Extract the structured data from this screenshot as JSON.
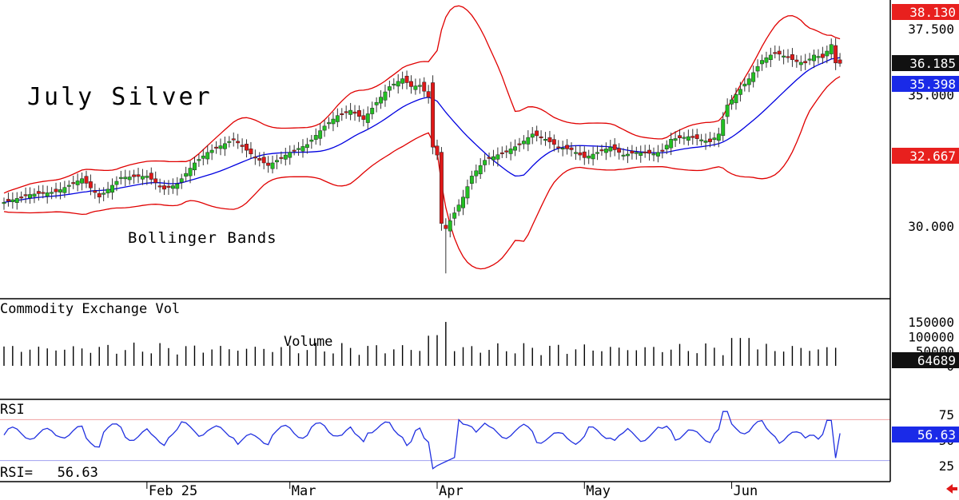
{
  "chart_data": [
    {
      "type": "candlestick",
      "title": "July Silver",
      "annotation": "Bollinger Bands",
      "y_ticks": [
        30.0,
        35.0,
        37.5
      ],
      "y_tick_labels": [
        "30.000",
        "35.000",
        "37.500"
      ],
      "ylim": [
        27.2,
        38.7
      ],
      "x_tick_labels": [
        "Feb 25",
        "Mar",
        "Apr",
        "May",
        "Jun"
      ],
      "x_tick_index": [
        33,
        66,
        100,
        134,
        168
      ],
      "markers": [
        {
          "label": "38.130",
          "value": 38.13,
          "color": "#e8201e"
        },
        {
          "label": "36.185",
          "value": 36.185,
          "color": "#111111"
        },
        {
          "label": "35.398",
          "value": 35.398,
          "color": "#1a2ae8"
        },
        {
          "label": "32.667",
          "value": 32.667,
          "color": "#e8201e"
        }
      ],
      "series": [
        {
          "name": "",
          "kind": "ohlc",
          "values": []
        },
        {
          "name": "",
          "kind": "line",
          "color": "#0000e0",
          "values": []
        },
        {
          "name": "",
          "kind": "line",
          "color": "#e00000",
          "values": []
        },
        {
          "name": "",
          "kind": "line",
          "color": "#e00000",
          "values": []
        }
      ],
      "grid": false
    },
    {
      "type": "bar",
      "title": "Commodity Exchange Vol",
      "annotation": "Volume",
      "y_ticks": [
        0,
        50000,
        100000,
        150000
      ],
      "y_tick_labels": [
        "0",
        "50000",
        "100000",
        "150000"
      ],
      "ylim": [
        0,
        185000
      ],
      "markers": [
        {
          "label": "64689",
          "value": 64689,
          "color": "#111111"
        }
      ],
      "values": []
    },
    {
      "type": "line",
      "title": "RSI",
      "readout": "RSI=   56.63",
      "y_ticks": [
        25,
        50,
        75
      ],
      "y_tick_labels": [
        "25",
        "50",
        "75"
      ],
      "ylim": [
        12,
        92
      ],
      "reference_lines": [
        70,
        30
      ],
      "markers": [
        {
          "label": "56.63",
          "value": 56.63,
          "color": "#1a2ae8"
        }
      ],
      "series": [
        {
          "name": "",
          "color": "#2030e0",
          "values": []
        }
      ]
    }
  ],
  "icons": {
    "corner": "left-arrow-icon"
  },
  "colors": {
    "up": "#22c022",
    "down": "#e01818",
    "sma": "#0000e0",
    "band": "#e00000",
    "rsi": "#2030e0"
  }
}
